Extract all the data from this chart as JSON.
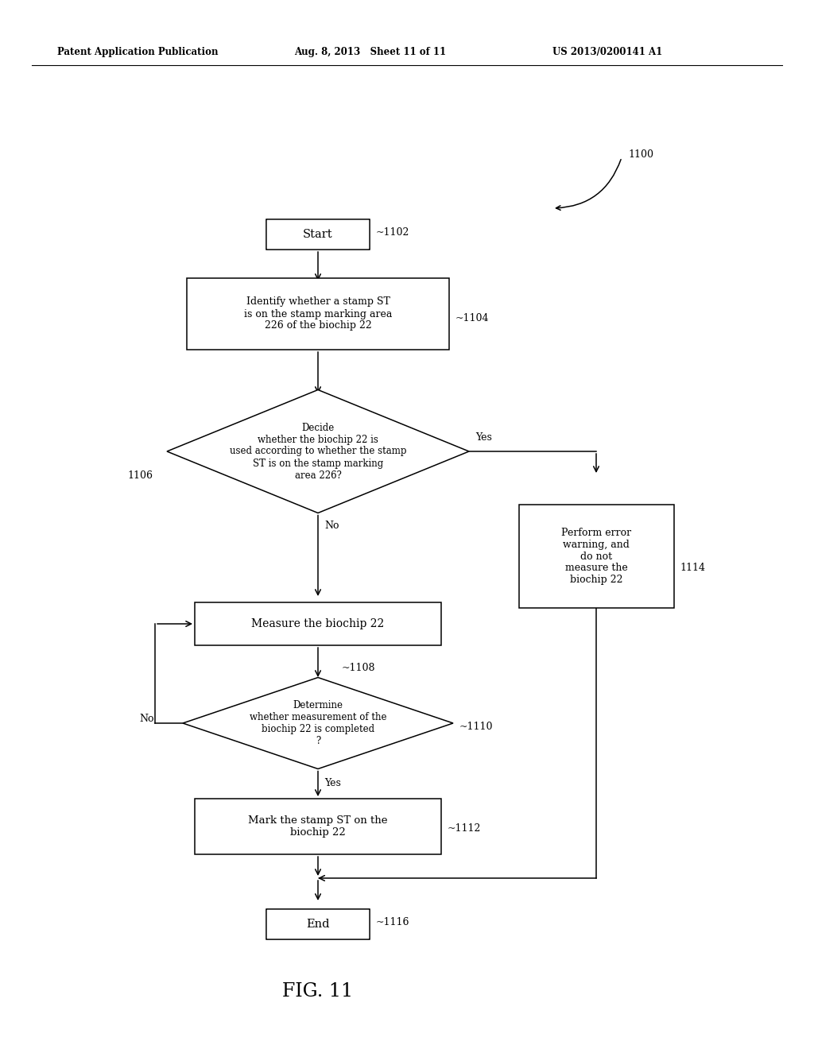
{
  "header_left": "Patent Application Publication",
  "header_mid": "Aug. 8, 2013   Sheet 11 of 11",
  "header_right": "US 2013/0200141 A1",
  "fig_label": "FIG. 11",
  "ref_1100": "1100",
  "ref_1102": "~1102",
  "ref_1104": "~1104",
  "ref_1106": "1106",
  "ref_1108": "~1108",
  "ref_1110": "~1110",
  "ref_1112": "~1112",
  "ref_1114": "1114",
  "ref_1116": "~1116",
  "start_text": "Start",
  "end_text": "End",
  "box1_text": "Identify whether a stamp ST\nis on the stamp marking area\n226 of the biochip 22",
  "diamond1_text": "Decide\nwhether the biochip 22 is\nused according to whether the stamp\nST is on the stamp marking\narea 226?",
  "box2_text": "Measure the biochip 22",
  "diamond2_text": "Determine\nwhether measurement of the\nbiochip 22 is completed\n?",
  "box3_text": "Mark the stamp ST on the\nbiochip 22",
  "box4_text": "Perform error\nwarning, and\ndo not\nmeasure the\nbiochip 22",
  "yes_label": "Yes",
  "no_label1": "No",
  "no_label2": "No",
  "yes_label2": "Yes",
  "bg_color": "#ffffff",
  "line_color": "#000000",
  "text_color": "#000000"
}
